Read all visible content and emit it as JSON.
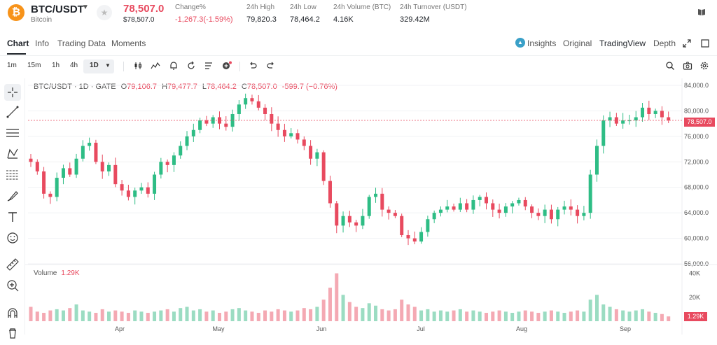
{
  "header": {
    "pair": "BTC/USDT",
    "coin_name": "Bitcoin",
    "coin_glyph": "₿",
    "last_price": "78,507.0",
    "last_price_usd": "$78,507.0",
    "stats": [
      {
        "label": "Change%",
        "value": "-1,267.3(-1.59%)",
        "negative": true
      },
      {
        "label": "24h High",
        "value": "79,820.3"
      },
      {
        "label": "24h Low",
        "value": "78,464.2"
      },
      {
        "label": "24h Volume (BTC)",
        "value": "4.16K"
      },
      {
        "label": "24h Turnover (USDT)",
        "value": "329.42M"
      }
    ]
  },
  "tabs": {
    "left": [
      "Chart",
      "Info",
      "Trading Data",
      "Moments"
    ],
    "right": [
      "Insights",
      "Original",
      "TradingView",
      "Depth"
    ]
  },
  "toolbar": {
    "timeframes": [
      "1m",
      "15m",
      "1h",
      "4h",
      "1D"
    ]
  },
  "chart": {
    "legend": {
      "symbol": "BTC/USDT · 1D · GATE",
      "open_label": "O",
      "open": "79,106.7",
      "high_label": "H",
      "high": "79,477.7",
      "low_label": "L",
      "low": "78,464.2",
      "close_label": "C",
      "close": "78,507.0",
      "change": "-599.7 (−0.76%)"
    },
    "current_price_tag": "78,507.0",
    "volume_label": "Volume",
    "volume_value": "1.29K",
    "volume_tag": "1.29K",
    "colors": {
      "up": "#2ebd85",
      "down": "#e84a5f",
      "vol_up": "#9bdcc2",
      "vol_down": "#f4a9b3"
    }
  },
  "chart_data": {
    "type": "candlestick",
    "price_axis": {
      "ticks": [
        "84,000.0",
        "80,000.0",
        "76,000.0",
        "72,000.0",
        "68,000.0",
        "64,000.0",
        "60,000.0",
        "56,000.0"
      ],
      "ylim": [
        56000,
        84000
      ]
    },
    "volume_axis": {
      "ticks": [
        "40K",
        "20K"
      ],
      "ylim": [
        0,
        45000
      ]
    },
    "months": [
      "Apr",
      "May",
      "Jun",
      "Jul",
      "Aug",
      "Sep"
    ],
    "close_path": [
      72000,
      70500,
      67000,
      66500,
      69500,
      71000,
      70000,
      72500,
      74500,
      75000,
      72000,
      70500,
      71500,
      68500,
      67500,
      66500,
      67500,
      68000,
      67000,
      70000,
      72000,
      71500,
      73000,
      74500,
      76000,
      77000,
      78500,
      78000,
      79000,
      78000,
      77500,
      79500,
      81000,
      82000,
      81500,
      80500,
      79500,
      78000,
      77000,
      76000,
      76500,
      75500,
      74500,
      72500,
      73500,
      69000,
      65500,
      62000,
      63500,
      62500,
      62000,
      63500,
      66500,
      67000,
      64500,
      64000,
      63500,
      60500,
      60000,
      59500,
      61000,
      63000,
      64000,
      64500,
      65000,
      64500,
      65500,
      64500,
      66000,
      66500,
      65500,
      64500,
      64000,
      65000,
      65500,
      66000,
      65000,
      64000,
      63500,
      64500,
      63000,
      64500,
      65000,
      64500,
      63500,
      64000,
      70000,
      74500,
      78500,
      79000,
      78000,
      78500,
      78500,
      79000,
      80500,
      79500,
      80000,
      79000,
      78507
    ],
    "volume_path": [
      12,
      8,
      7,
      9,
      10,
      9,
      11,
      14,
      9,
      8,
      7,
      10,
      8,
      9,
      8,
      7,
      9,
      8,
      7,
      8,
      9,
      10,
      8,
      11,
      12,
      9,
      10,
      8,
      9,
      7,
      8,
      10,
      11,
      9,
      8,
      7,
      9,
      8,
      10,
      9,
      8,
      9,
      11,
      10,
      12,
      18,
      28,
      40,
      22,
      16,
      12,
      11,
      15,
      13,
      10,
      9,
      10,
      18,
      14,
      12,
      9,
      10,
      8,
      9,
      8,
      9,
      10,
      8,
      9,
      8,
      7,
      8,
      9,
      8,
      7,
      8,
      9,
      8,
      7,
      8,
      9,
      8,
      7,
      8,
      9,
      8,
      18,
      22,
      14,
      12,
      10,
      9,
      8,
      9,
      10,
      8,
      7,
      6,
      4
    ]
  }
}
